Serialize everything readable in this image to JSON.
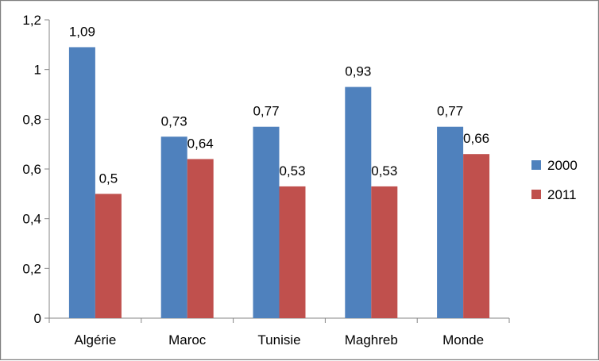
{
  "chart_data": {
    "type": "bar",
    "categories": [
      "Algérie",
      "Maroc",
      "Tunisie",
      "Maghreb",
      "Monde"
    ],
    "series": [
      {
        "name": "2000",
        "color": "#4F81BD",
        "values": [
          1.09,
          0.73,
          0.77,
          0.93,
          0.77
        ],
        "labels": [
          "1,09",
          "0,73",
          "0,77",
          "0,93",
          "0,77"
        ]
      },
      {
        "name": "2011",
        "color": "#C0504D",
        "values": [
          0.5,
          0.64,
          0.53,
          0.53,
          0.66
        ],
        "labels": [
          "0,5",
          "0,64",
          "0,53",
          "0,53",
          "0,66"
        ]
      }
    ],
    "ylim": [
      0,
      1.2
    ],
    "yticks": [
      0,
      0.2,
      0.4,
      0.6,
      0.8,
      1,
      1.2
    ],
    "ytick_labels": [
      "0",
      "0,2",
      "0,4",
      "0,6",
      "0,8",
      "1",
      "1,2"
    ],
    "title": "",
    "xlabel": "",
    "ylabel": "",
    "grid": false,
    "legend_position": "right"
  }
}
